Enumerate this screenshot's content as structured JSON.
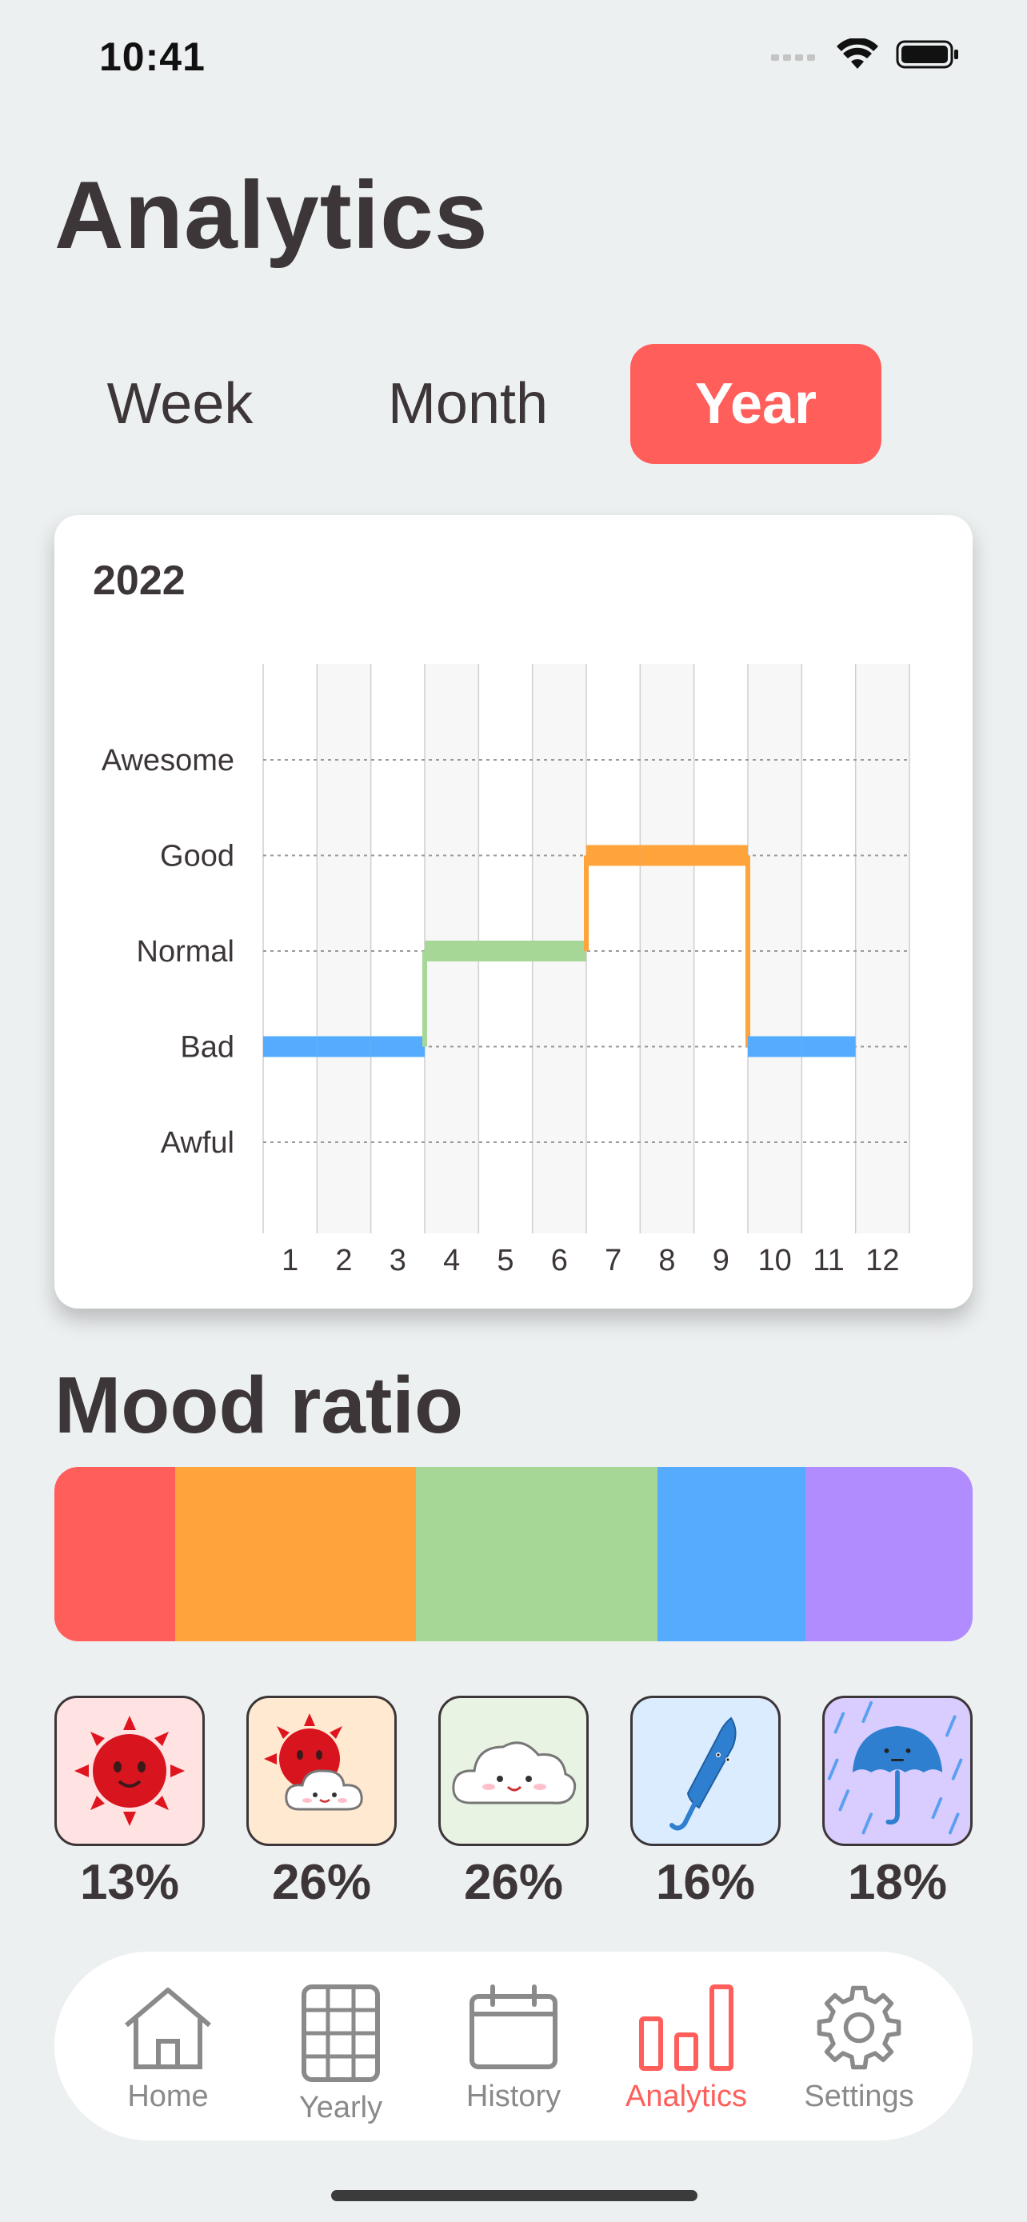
{
  "status_bar": {
    "time": "10:41"
  },
  "page": {
    "title": "Analytics"
  },
  "tabs": [
    {
      "label": "Week",
      "active": false
    },
    {
      "label": "Month",
      "active": false
    },
    {
      "label": "Year",
      "active": true
    }
  ],
  "chart_data": {
    "type": "line",
    "title": "2022",
    "x": [
      1,
      2,
      3,
      4,
      5,
      6,
      7,
      8,
      9,
      10,
      11,
      12
    ],
    "y_categories": [
      "Awful",
      "Bad",
      "Normal",
      "Good",
      "Awesome"
    ],
    "series": [
      {
        "values": [
          "Bad",
          "Bad",
          "Bad",
          "Normal",
          "Normal",
          "Normal",
          "Good",
          "Good",
          "Good",
          "Bad",
          "Bad",
          null
        ]
      }
    ],
    "mood_colors": {
      "Awful": "#b18cff",
      "Bad": "#55acff",
      "Normal": "#a6d796",
      "Good": "#ffa43a",
      "Awesome": "#ff5e5b"
    },
    "xlim": [
      0.5,
      12.5
    ],
    "grid": true
  },
  "mood_ratio": {
    "title": "Mood ratio",
    "segments": [
      {
        "mood": "Awesome",
        "percent": 13,
        "label": "13%",
        "color": "#ff5e5b",
        "icon": "sun-icon",
        "tile_bg": "#ffe2e2"
      },
      {
        "mood": "Good",
        "percent": 26,
        "label": "26%",
        "color": "#ffa43a",
        "icon": "sun-cloud-icon",
        "tile_bg": "#ffe9d0"
      },
      {
        "mood": "Normal",
        "percent": 26,
        "label": "26%",
        "color": "#a6d796",
        "icon": "cloud-icon",
        "tile_bg": "#e8f3e4"
      },
      {
        "mood": "Bad",
        "percent": 16,
        "label": "16%",
        "color": "#55acff",
        "icon": "closed-umbrella-icon",
        "tile_bg": "#dcecff"
      },
      {
        "mood": "Awful",
        "percent": 18,
        "label": "18%",
        "color": "#b18cff",
        "icon": "rain-umbrella-icon",
        "tile_bg": "#d9ccff"
      }
    ]
  },
  "nav": [
    {
      "label": "Home",
      "icon": "home-icon",
      "active": false
    },
    {
      "label": "Yearly",
      "icon": "grid-icon",
      "active": false
    },
    {
      "label": "History",
      "icon": "calendar-icon",
      "active": false
    },
    {
      "label": "Analytics",
      "icon": "bar-chart-icon",
      "active": true
    },
    {
      "label": "Settings",
      "icon": "gear-icon",
      "active": false
    }
  ],
  "colors": {
    "accent": "#ff5e5b",
    "text": "#3d3638",
    "background": "#edf0f1"
  }
}
